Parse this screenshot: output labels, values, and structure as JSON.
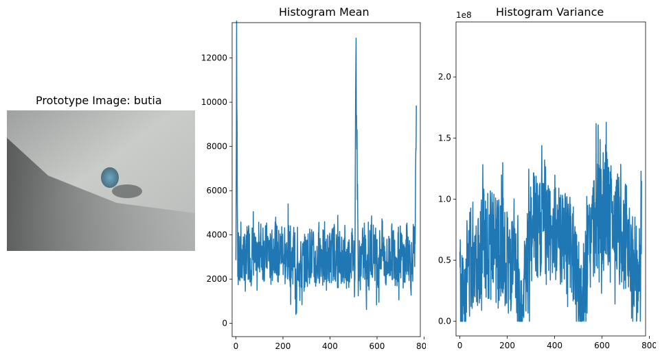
{
  "figure": {
    "prototype_title": "Prototype Image: butia",
    "mean_title": "Histogram Mean",
    "variance_title": "Histogram Variance",
    "variance_offset_label": "1e8"
  },
  "prototype_image": {
    "description_colors": {
      "background_light": "#c9ccc9",
      "background_dark": "#4a4d4c",
      "object": "#5f8fa8"
    }
  },
  "chart_data": [
    {
      "type": "line",
      "title": "Histogram Mean",
      "xlabel": "",
      "ylabel": "",
      "xlim": [
        -16,
        784
      ],
      "ylim": [
        -600,
        13600
      ],
      "xticks": [
        0,
        200,
        400,
        600,
        800
      ],
      "xtick_labels": [
        "0",
        "200",
        "400",
        "600",
        "800"
      ],
      "yticks": [
        0,
        2000,
        4000,
        6000,
        8000,
        10000,
        12000
      ],
      "ytick_labels": [
        "0",
        "2000",
        "4000",
        "6000",
        "8000",
        "10000",
        "12000"
      ],
      "grid": false,
      "color": "#1f77b4",
      "series": [
        {
          "x": [
            0,
            3,
            8,
            20,
            28,
            42,
            52,
            62,
            75,
            88,
            100,
            118,
            135,
            150,
            165,
            180,
            198,
            212,
            225,
            240,
            250,
            256,
            262,
            275,
            300,
            320,
            340,
            362,
            380,
            400,
            420,
            430,
            450,
            470,
            490,
            506,
            510,
            520,
            540,
            560,
            580,
            605,
            620,
            640,
            660,
            680,
            700,
            718,
            730,
            745,
            755,
            762,
            767
          ],
          "y": [
            2700,
            11900,
            3000,
            2500,
            3200,
            2600,
            3600,
            2900,
            3300,
            2400,
            3600,
            3100,
            3400,
            2800,
            3700,
            3000,
            3500,
            2700,
            3300,
            2900,
            3600,
            0,
            3000,
            2500,
            2900,
            3200,
            2600,
            3300,
            2700,
            3000,
            3300,
            2800,
            3100,
            2600,
            3200,
            3000,
            12800,
            2500,
            3100,
            2700,
            3400,
            2900,
            3500,
            2600,
            3300,
            2900,
            3200,
            2700,
            3600,
            2500,
            3400,
            3000,
            9850
          ]
        }
      ]
    },
    {
      "type": "line",
      "title": "Histogram Variance",
      "xlabel": "",
      "ylabel": "",
      "offset_text": "1e8",
      "xlim": [
        -16,
        784
      ],
      "ylim": [
        -0.12,
        2.45
      ],
      "xticks": [
        0,
        200,
        400,
        600,
        800
      ],
      "xtick_labels": [
        "0",
        "200",
        "400",
        "600",
        "800"
      ],
      "yticks": [
        0.0,
        0.5,
        1.0,
        1.5,
        2.0
      ],
      "ytick_labels": [
        "0.0",
        "0.5",
        "1.0",
        "1.5",
        "2.0"
      ],
      "grid": false,
      "color": "#1f77b4",
      "series": [
        {
          "x": [
            0,
            5,
            15,
            30,
            45,
            60,
            80,
            100,
            120,
            140,
            160,
            180,
            200,
            220,
            240,
            255,
            262,
            275,
            290,
            305,
            320,
            340,
            355,
            370,
            390,
            410,
            425,
            440,
            460,
            480,
            500,
            510,
            520,
            540,
            560,
            580,
            600,
            615,
            630,
            650,
            670,
            690,
            710,
            725,
            740,
            752,
            762,
            767
          ],
          "y": [
            0.5,
            0.05,
            0.2,
            0.45,
            0.5,
            0.6,
            0.55,
            0.7,
            0.6,
            0.65,
            0.55,
            0.6,
            0.5,
            0.4,
            0.3,
            0.05,
            0.1,
            0.3,
            0.55,
            0.75,
            0.8,
            0.7,
            0.9,
            0.75,
            0.7,
            0.8,
            0.65,
            0.7,
            0.6,
            0.5,
            0.35,
            0.05,
            0.2,
            0.5,
            0.7,
            0.85,
            0.9,
            1.0,
            0.85,
            0.8,
            0.75,
            0.7,
            0.65,
            0.55,
            0.45,
            0.35,
            0.3,
            1.15
          ]
        }
      ]
    }
  ]
}
